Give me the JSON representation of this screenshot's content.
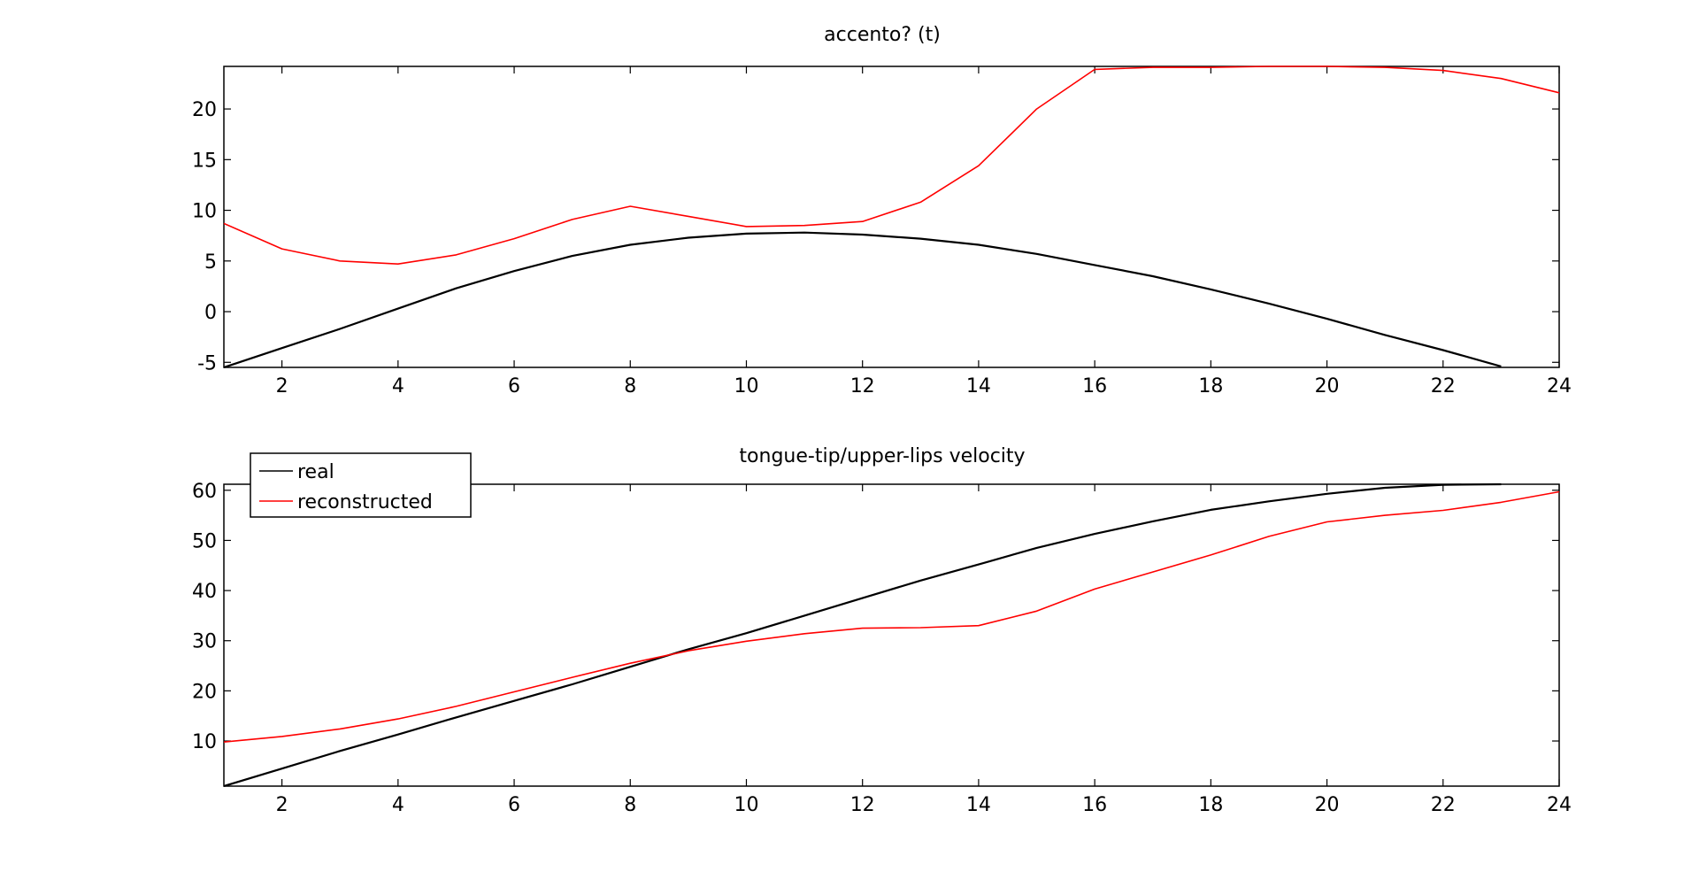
{
  "chart_data": [
    {
      "type": "line",
      "title": "accento? (t)",
      "xlabel": "",
      "ylabel": "",
      "xlim": [
        1,
        24
      ],
      "ylim": [
        -5.5,
        24.2
      ],
      "xticks": [
        "2",
        "4",
        "6",
        "8",
        "10",
        "12",
        "14",
        "16",
        "18",
        "20",
        "22",
        "24"
      ],
      "yticks": [
        "-5",
        "0",
        "5",
        "10",
        "15",
        "20"
      ],
      "grid": false,
      "series": [
        {
          "color": "#000000",
          "x": [
            1,
            2,
            3,
            4,
            5,
            6,
            7,
            8,
            9,
            10,
            11,
            12,
            13,
            14,
            15,
            16,
            17,
            18,
            19,
            20,
            21,
            22,
            23
          ],
          "values": [
            -5.5,
            -3.6,
            -1.7,
            0.3,
            2.3,
            4.0,
            5.5,
            6.6,
            7.3,
            7.7,
            7.8,
            7.6,
            7.2,
            6.6,
            5.7,
            4.6,
            3.5,
            2.2,
            0.8,
            -0.7,
            -2.3,
            -3.8,
            -5.4
          ]
        },
        {
          "color": "#ff0000",
          "x": [
            1,
            2,
            3,
            4,
            5,
            6,
            7,
            8,
            9,
            10,
            11,
            12,
            13,
            14,
            15,
            16,
            17,
            18,
            19,
            20,
            21,
            22,
            23,
            24
          ],
          "values": [
            8.7,
            6.2,
            5.0,
            4.7,
            5.6,
            7.2,
            9.1,
            10.4,
            9.4,
            8.4,
            8.5,
            8.9,
            10.8,
            14.4,
            20.0,
            23.9,
            24.1,
            24.1,
            24.2,
            24.2,
            24.1,
            23.8,
            23.0,
            21.6
          ]
        }
      ]
    },
    {
      "type": "line",
      "title": "tongue-tip/upper-lips velocity",
      "xlabel": "",
      "ylabel": "",
      "xlim": [
        1,
        24
      ],
      "ylim": [
        1,
        61.2
      ],
      "xticks": [
        "2",
        "4",
        "6",
        "8",
        "10",
        "12",
        "14",
        "16",
        "18",
        "20",
        "22",
        "24"
      ],
      "yticks": [
        "10",
        "20",
        "30",
        "40",
        "50",
        "60"
      ],
      "grid": false,
      "legend": {
        "position": "top-left",
        "entries": [
          "real",
          "reconstructed"
        ]
      },
      "series": [
        {
          "name": "real",
          "color": "#000000",
          "x": [
            1,
            2,
            3,
            4,
            5,
            6,
            7,
            8,
            9,
            10,
            11,
            12,
            13,
            14,
            15,
            16,
            17,
            18,
            19,
            20,
            21,
            22,
            23
          ],
          "values": [
            1.0,
            4.5,
            8.0,
            11.3,
            14.7,
            18.0,
            21.3,
            24.8,
            28.3,
            31.5,
            35.0,
            38.5,
            42.0,
            45.2,
            48.5,
            51.3,
            53.8,
            56.1,
            57.8,
            59.3,
            60.5,
            61.1,
            61.2
          ]
        },
        {
          "name": "reconstructed",
          "color": "#ff0000",
          "x": [
            1,
            2,
            3,
            4,
            5,
            6,
            7,
            8,
            9,
            10,
            11,
            12,
            13,
            14,
            15,
            16,
            17,
            18,
            19,
            20,
            21,
            22,
            23,
            24
          ],
          "values": [
            9.8,
            10.9,
            12.4,
            14.4,
            16.9,
            19.8,
            22.7,
            25.5,
            28.0,
            29.9,
            31.4,
            32.5,
            32.6,
            33.0,
            35.9,
            40.3,
            43.7,
            47.1,
            50.8,
            53.7,
            55.0,
            56.0,
            57.6,
            59.7
          ]
        }
      ]
    }
  ]
}
